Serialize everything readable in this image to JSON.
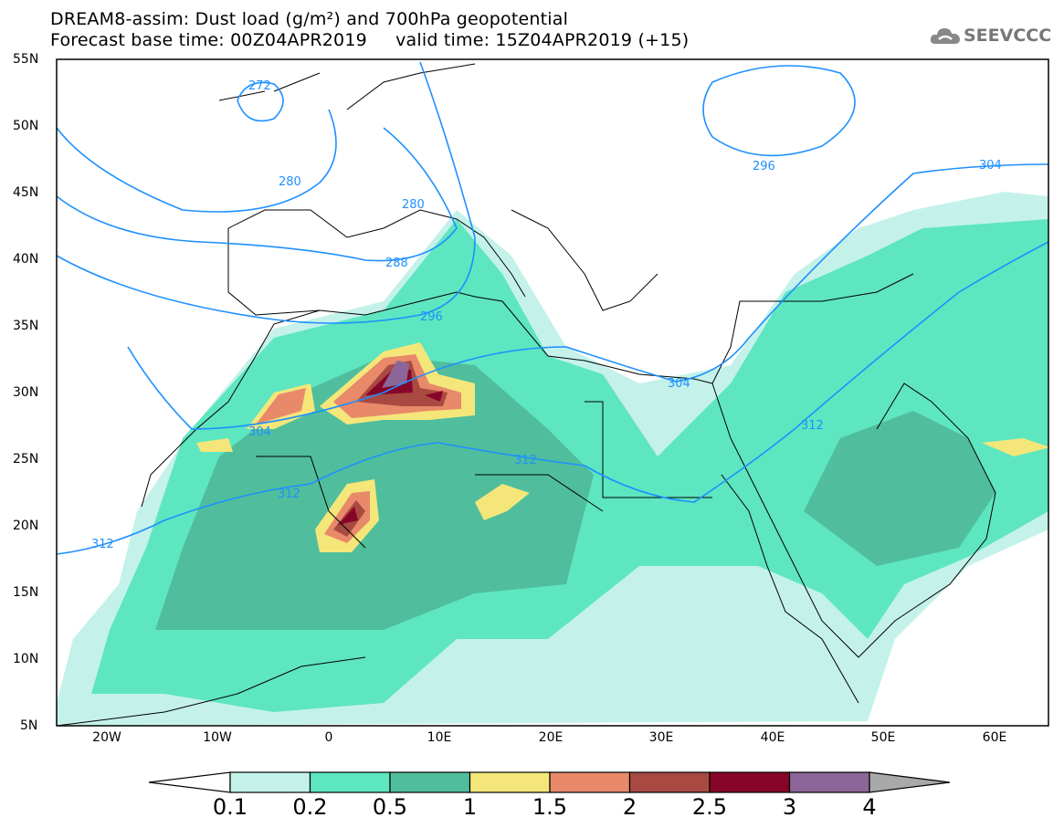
{
  "header": {
    "title": "DREAM8-assim: Dust load (g/m²) and 700hPa geopotential",
    "subtitle": "Forecast base time: 00Z04APR2019     valid time: 15Z04APR2019 (+15)",
    "logo": "SEEVCCC"
  },
  "map": {
    "lat_labels": [
      "55N",
      "50N",
      "45N",
      "40N",
      "35N",
      "30N",
      "25N",
      "20N",
      "15N",
      "10N",
      "5N"
    ],
    "lon_labels": [
      "20W",
      "10W",
      "0",
      "10E",
      "20E",
      "30E",
      "40E",
      "50E",
      "60E"
    ],
    "contour_labels": [
      "272",
      "280",
      "280",
      "288",
      "296",
      "296",
      "304",
      "304",
      "304",
      "312",
      "312",
      "312",
      "312"
    ],
    "contour_color": "#1e90ff"
  },
  "colorbar": {
    "labels": [
      "0.1",
      "0.2",
      "0.5",
      "1",
      "1.5",
      "2",
      "2.5",
      "3",
      "4"
    ],
    "colors": [
      "#c4f2ea",
      "#5ee6c0",
      "#50be9c",
      "#f5e67a",
      "#e8896a",
      "#a84a42",
      "#870528",
      "#8c6698"
    ],
    "under_color": "#ffffff",
    "over_color": "#a9a9a9"
  }
}
